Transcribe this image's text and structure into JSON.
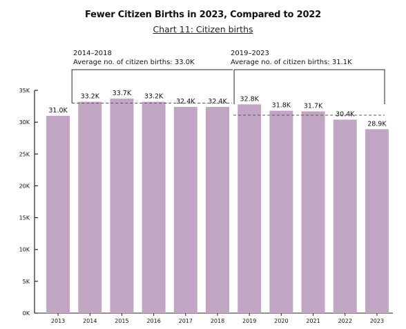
{
  "chart_data": {
    "type": "bar",
    "title": "Fewer Citizen Births in 2023, Compared to 2022",
    "subtitle": "Chart 11: Citizen births",
    "categories": [
      "2013",
      "2014",
      "2015",
      "2016",
      "2017",
      "2018",
      "2019",
      "2020",
      "2021",
      "2022",
      "2023"
    ],
    "values": [
      31.0,
      33.2,
      33.7,
      33.2,
      32.4,
      32.4,
      32.8,
      31.8,
      31.7,
      30.4,
      28.9
    ],
    "data_labels": [
      "31.0K",
      "33.2K",
      "33.7K",
      "33.2K",
      "32.4K",
      "32.4K",
      "32.8K",
      "31.8K",
      "31.7K",
      "30.4K",
      "28.9K"
    ],
    "yticks": [
      0,
      5,
      10,
      15,
      20,
      25,
      30,
      35
    ],
    "ytick_labels": [
      "0K",
      "5K",
      "10K",
      "15K",
      "20K",
      "25K",
      "30K",
      "35K"
    ],
    "ylim": [
      0,
      35
    ],
    "xlabel": "",
    "ylabel": "",
    "bar_color": "#c0a6c2",
    "averages": [
      {
        "period": "2014–2018",
        "label": "Average no. of citizen births: 33.0K",
        "value": 33.0,
        "start": "2014",
        "end": "2018"
      },
      {
        "period": "2019–2023",
        "label": "Average no. of citizen births: 31.1K",
        "value": 31.1,
        "start": "2019",
        "end": "2023"
      }
    ]
  }
}
